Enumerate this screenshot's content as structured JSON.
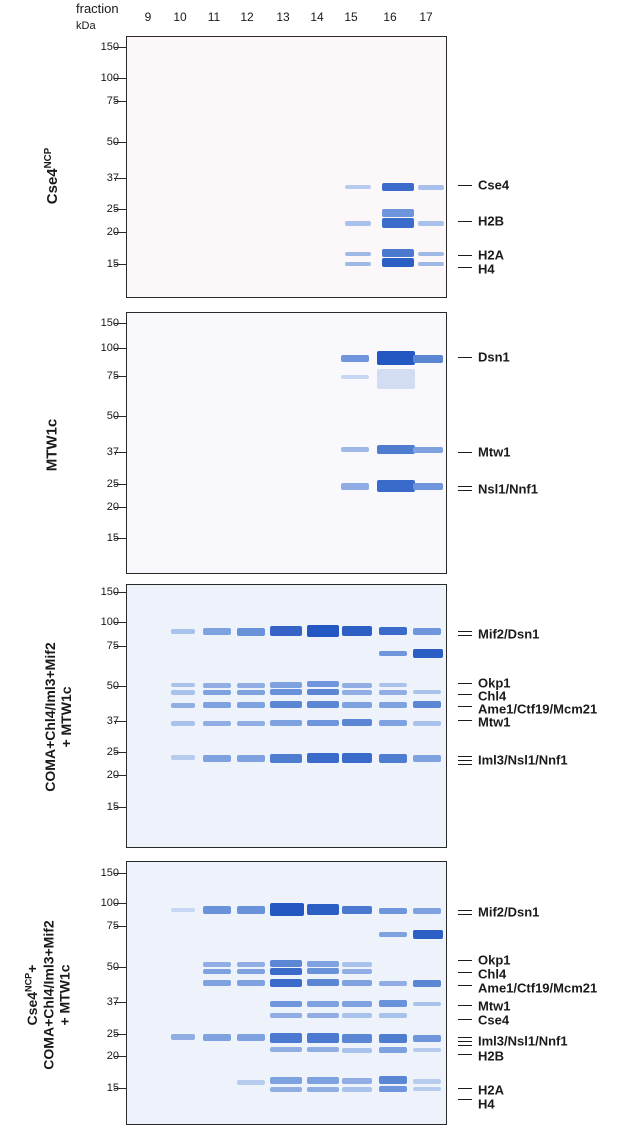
{
  "header": {
    "fraction_label": "fraction",
    "kda_label": "kDa"
  },
  "lanes": [
    "9",
    "10",
    "11",
    "12",
    "13",
    "14",
    "15",
    "16",
    "17"
  ],
  "colors": {
    "band_strong": "#2c5fc4",
    "band_light": "#9fb9e7",
    "gel_pink": "#fcf8fa",
    "gel_blue": "#eef3fb"
  },
  "panels": [
    {
      "title_main": "Cse4",
      "title_sup": "NCP",
      "title_rest": "",
      "markers": [
        "150",
        "100",
        "75",
        "50",
        "37",
        "25",
        "20",
        "15"
      ],
      "labels": [
        "Cse4",
        "H2B",
        "H2A",
        "H4"
      ]
    },
    {
      "title_main": "MTW1c",
      "title_sup": "",
      "title_rest": "",
      "markers": [
        "150",
        "100",
        "75",
        "50",
        "37",
        "25",
        "20",
        "15"
      ],
      "labels": [
        "Dsn1",
        "Mtw1",
        "Nsl1/Nnf1"
      ]
    },
    {
      "title_line1": "COMA+Chl4/Iml3+Mif2",
      "title_line2": "+ MTW1c",
      "markers": [
        "150",
        "100",
        "75",
        "50",
        "37",
        "25",
        "20",
        "15"
      ],
      "labels": [
        "Mif2/Dsn1",
        "Okp1",
        "Chl4",
        "Ame1/Ctf19/Mcm21",
        "Mtw1",
        "Iml3/Nsl1/Nnf1"
      ]
    },
    {
      "title_line0_main": "Cse4",
      "title_line0_sup": "NCP",
      "title_line0_rest": "+",
      "title_line1": "COMA+Chl4/Iml3+Mif2",
      "title_line2": "+ MTW1c",
      "markers": [
        "150",
        "100",
        "75",
        "50",
        "37",
        "25",
        "20",
        "15"
      ],
      "labels": [
        "Mif2/Dsn1",
        "Okp1",
        "Chl4",
        "Ame1/Ctf19/Mcm21",
        "Mtw1",
        "Cse4",
        "Iml3/Nsl1/Nnf1",
        "H2B",
        "H2A",
        "H4"
      ]
    }
  ]
}
